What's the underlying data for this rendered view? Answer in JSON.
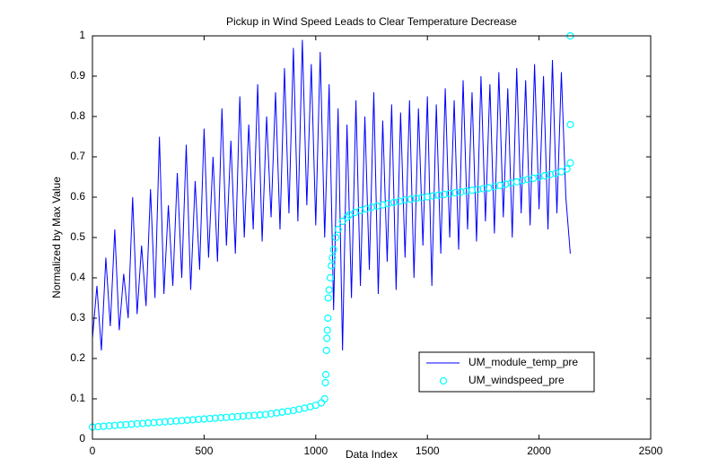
{
  "chart_data": {
    "type": "line",
    "title": "Pickup in Wind Speed Leads to Clear Temperature Decrease",
    "x_label": "Data Index",
    "y_label": "Normalized by Max Value",
    "xlim": [
      0,
      2500
    ],
    "xticks": [
      0,
      500,
      1000,
      1500,
      2000,
      2500
    ],
    "ylim": [
      0,
      1
    ],
    "yticks": [
      0,
      0.1,
      0.2,
      0.3,
      0.4,
      0.5,
      0.6,
      0.7,
      0.8,
      0.9,
      1
    ],
    "legend": "lower right",
    "series": [
      {
        "name": "UM_module_temp_pre",
        "type": "line",
        "color": "#0000ff",
        "x": [
          0,
          20,
          40,
          60,
          80,
          100,
          120,
          140,
          160,
          180,
          200,
          220,
          240,
          260,
          280,
          300,
          320,
          340,
          360,
          380,
          400,
          420,
          440,
          460,
          480,
          500,
          520,
          540,
          560,
          580,
          600,
          620,
          640,
          660,
          680,
          700,
          720,
          740,
          760,
          780,
          800,
          820,
          840,
          860,
          880,
          900,
          920,
          940,
          960,
          980,
          1000,
          1020,
          1040,
          1060,
          1080,
          1100,
          1120,
          1140,
          1160,
          1180,
          1200,
          1220,
          1240,
          1260,
          1280,
          1300,
          1320,
          1340,
          1360,
          1380,
          1400,
          1420,
          1440,
          1460,
          1480,
          1500,
          1520,
          1540,
          1560,
          1580,
          1600,
          1620,
          1640,
          1660,
          1680,
          1700,
          1720,
          1740,
          1760,
          1780,
          1800,
          1820,
          1840,
          1860,
          1880,
          1900,
          1920,
          1940,
          1960,
          1980,
          2000,
          2020,
          2040,
          2060,
          2080,
          2100,
          2120,
          2140
        ],
        "values": [
          0.25,
          0.38,
          0.22,
          0.45,
          0.28,
          0.52,
          0.27,
          0.41,
          0.3,
          0.6,
          0.31,
          0.48,
          0.33,
          0.62,
          0.35,
          0.75,
          0.36,
          0.58,
          0.38,
          0.66,
          0.4,
          0.73,
          0.37,
          0.64,
          0.42,
          0.77,
          0.45,
          0.7,
          0.44,
          0.82,
          0.48,
          0.74,
          0.46,
          0.85,
          0.5,
          0.78,
          0.52,
          0.88,
          0.49,
          0.8,
          0.55,
          0.86,
          0.52,
          0.92,
          0.56,
          0.97,
          0.54,
          0.99,
          0.58,
          0.93,
          0.53,
          0.96,
          0.5,
          0.88,
          0.32,
          0.82,
          0.22,
          0.78,
          0.35,
          0.84,
          0.38,
          0.8,
          0.42,
          0.86,
          0.36,
          0.79,
          0.44,
          0.83,
          0.37,
          0.81,
          0.45,
          0.84,
          0.4,
          0.82,
          0.48,
          0.85,
          0.38,
          0.83,
          0.46,
          0.87,
          0.5,
          0.84,
          0.47,
          0.89,
          0.52,
          0.86,
          0.49,
          0.9,
          0.54,
          0.88,
          0.51,
          0.91,
          0.55,
          0.87,
          0.5,
          0.92,
          0.56,
          0.89,
          0.53,
          0.93,
          0.57,
          0.9,
          0.52,
          0.94,
          0.56,
          0.91,
          0.6,
          0.46
        ]
      },
      {
        "name": "UM_windspeed_pre",
        "type": "scatter",
        "color": "#00ffff",
        "x": [
          0,
          25,
          50,
          75,
          100,
          125,
          150,
          175,
          200,
          225,
          250,
          275,
          300,
          325,
          350,
          375,
          400,
          425,
          450,
          475,
          500,
          525,
          550,
          575,
          600,
          625,
          650,
          675,
          700,
          725,
          750,
          775,
          800,
          825,
          850,
          875,
          900,
          925,
          950,
          975,
          1000,
          1025,
          1040,
          1043,
          1045,
          1048,
          1050,
          1052,
          1054,
          1056,
          1060,
          1065,
          1070,
          1075,
          1080,
          1090,
          1100,
          1120,
          1140,
          1150,
          1175,
          1200,
          1225,
          1250,
          1275,
          1300,
          1325,
          1350,
          1375,
          1400,
          1425,
          1450,
          1475,
          1500,
          1525,
          1550,
          1575,
          1600,
          1625,
          1650,
          1675,
          1700,
          1725,
          1750,
          1775,
          1800,
          1825,
          1850,
          1875,
          1900,
          1925,
          1950,
          1975,
          2000,
          2025,
          2050,
          2075,
          2100,
          2125,
          2140,
          2140,
          2140
        ],
        "values": [
          0.03,
          0.031,
          0.032,
          0.033,
          0.034,
          0.035,
          0.036,
          0.037,
          0.038,
          0.039,
          0.04,
          0.041,
          0.042,
          0.043,
          0.044,
          0.045,
          0.046,
          0.047,
          0.048,
          0.049,
          0.05,
          0.051,
          0.052,
          0.053,
          0.054,
          0.055,
          0.056,
          0.057,
          0.058,
          0.059,
          0.06,
          0.061,
          0.063,
          0.065,
          0.067,
          0.069,
          0.071,
          0.074,
          0.077,
          0.08,
          0.084,
          0.09,
          0.1,
          0.14,
          0.16,
          0.22,
          0.25,
          0.27,
          0.3,
          0.35,
          0.37,
          0.4,
          0.43,
          0.45,
          0.47,
          0.5,
          0.52,
          0.54,
          0.55,
          0.556,
          0.562,
          0.567,
          0.571,
          0.575,
          0.578,
          0.581,
          0.584,
          0.587,
          0.59,
          0.593,
          0.595,
          0.597,
          0.599,
          0.601,
          0.603,
          0.605,
          0.607,
          0.609,
          0.611,
          0.613,
          0.615,
          0.617,
          0.619,
          0.621,
          0.623,
          0.626,
          0.629,
          0.632,
          0.635,
          0.638,
          0.641,
          0.644,
          0.647,
          0.65,
          0.653,
          0.656,
          0.659,
          0.663,
          0.67,
          0.685,
          0.78,
          1.0
        ]
      }
    ]
  }
}
